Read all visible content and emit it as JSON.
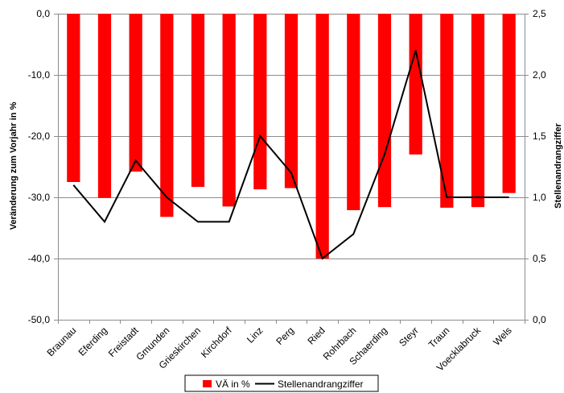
{
  "chart_data": {
    "type": "bar",
    "categories": [
      "Braunau",
      "Eferding",
      "Freistadt",
      "Gmunden",
      "Grieskirchen",
      "Kirchdorf",
      "Linz",
      "Perg",
      "Ried",
      "Rohrbach",
      "Schaerding",
      "Steyr",
      "Traun",
      "Voecklabruck",
      "Wels"
    ],
    "series": [
      {
        "name": "VÄ in %",
        "type": "bar",
        "axis": "left",
        "color": "#ff0000",
        "values": [
          -27.5,
          -30.1,
          -25.8,
          -33.2,
          -28.3,
          -31.5,
          -28.7,
          -28.5,
          -40.0,
          -32.1,
          -31.6,
          -23.0,
          -31.7,
          -31.6,
          -29.3
        ]
      },
      {
        "name": "Stellenandrangziffer",
        "type": "line",
        "axis": "right",
        "color": "#000000",
        "values": [
          1.1,
          0.8,
          1.3,
          1.0,
          0.8,
          0.8,
          1.5,
          1.2,
          0.5,
          0.7,
          1.35,
          2.2,
          1.0,
          1.0,
          1.0
        ]
      }
    ],
    "ylabel_left": "Veränderung zum Vorjahr in %",
    "ylabel_right": "Stellenandrangziffer",
    "ylim_left": [
      -50,
      0
    ],
    "ylim_right": [
      0,
      2.5
    ],
    "yticks_left": [
      "-50,0",
      "-40,0",
      "-30,0",
      "-20,0",
      "-10,0",
      "0,0"
    ],
    "yticks_right": [
      "0,0",
      "0,5",
      "1,0",
      "1,5",
      "2,0",
      "2,5"
    ],
    "grid": "horizontal",
    "legend_position": "bottom"
  }
}
